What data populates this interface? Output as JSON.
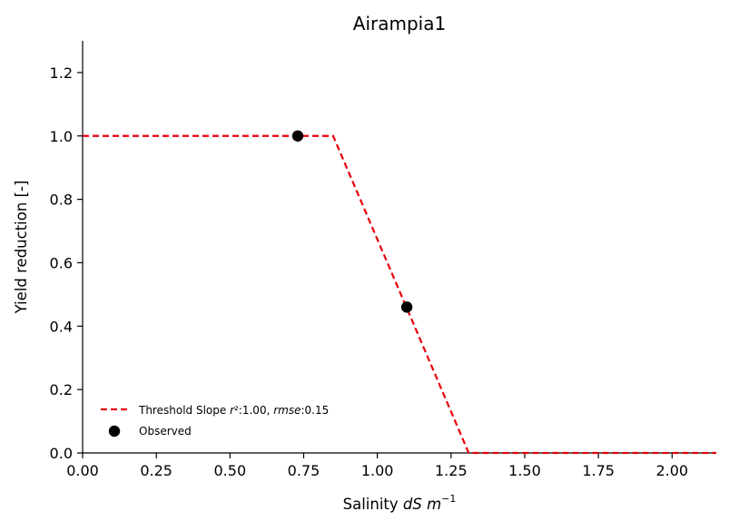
{
  "chart_data": {
    "type": "line",
    "title": "Airampia1",
    "xlabel_prefix": "Salinity ",
    "xlabel_math": "dS m",
    "xlabel_exp": "−1",
    "ylabel": "Yield reduction [-]",
    "xlim": [
      0.0,
      2.15
    ],
    "ylim": [
      0.0,
      1.3
    ],
    "x_ticks": [
      0.0,
      0.25,
      0.5,
      0.75,
      1.0,
      1.25,
      1.5,
      1.75,
      2.0
    ],
    "x_tick_labels": [
      "0.00",
      "0.25",
      "0.50",
      "0.75",
      "1.00",
      "1.25",
      "1.50",
      "1.75",
      "2.00"
    ],
    "y_ticks": [
      0.0,
      0.2,
      0.4,
      0.6,
      0.8,
      1.0,
      1.2
    ],
    "y_tick_labels": [
      "0.0",
      "0.2",
      "0.4",
      "0.6",
      "0.8",
      "1.0",
      "1.2"
    ],
    "grid": false,
    "legend_position": "lower-left",
    "series": [
      {
        "name": "Threshold Slope r²:1.00, rmse:0.15",
        "style": "dashed",
        "color": "#e8000b",
        "x": [
          0.0,
          0.85,
          1.31,
          2.15
        ],
        "y": [
          1.0,
          1.0,
          0.0,
          0.0
        ]
      },
      {
        "name": "Observed",
        "style": "markers",
        "color": "#000000",
        "x": [
          0.73,
          1.1
        ],
        "y": [
          1.0,
          0.46
        ]
      }
    ],
    "legend": {
      "line_label_parts": [
        {
          "text": "Threshold Slope ",
          "italic": false
        },
        {
          "text": "r",
          "italic": true
        },
        {
          "text": "²:1.00, ",
          "italic": false
        },
        {
          "text": "rmse",
          "italic": true
        },
        {
          "text": ":0.15",
          "italic": false
        }
      ],
      "marker_label": "Observed"
    }
  }
}
